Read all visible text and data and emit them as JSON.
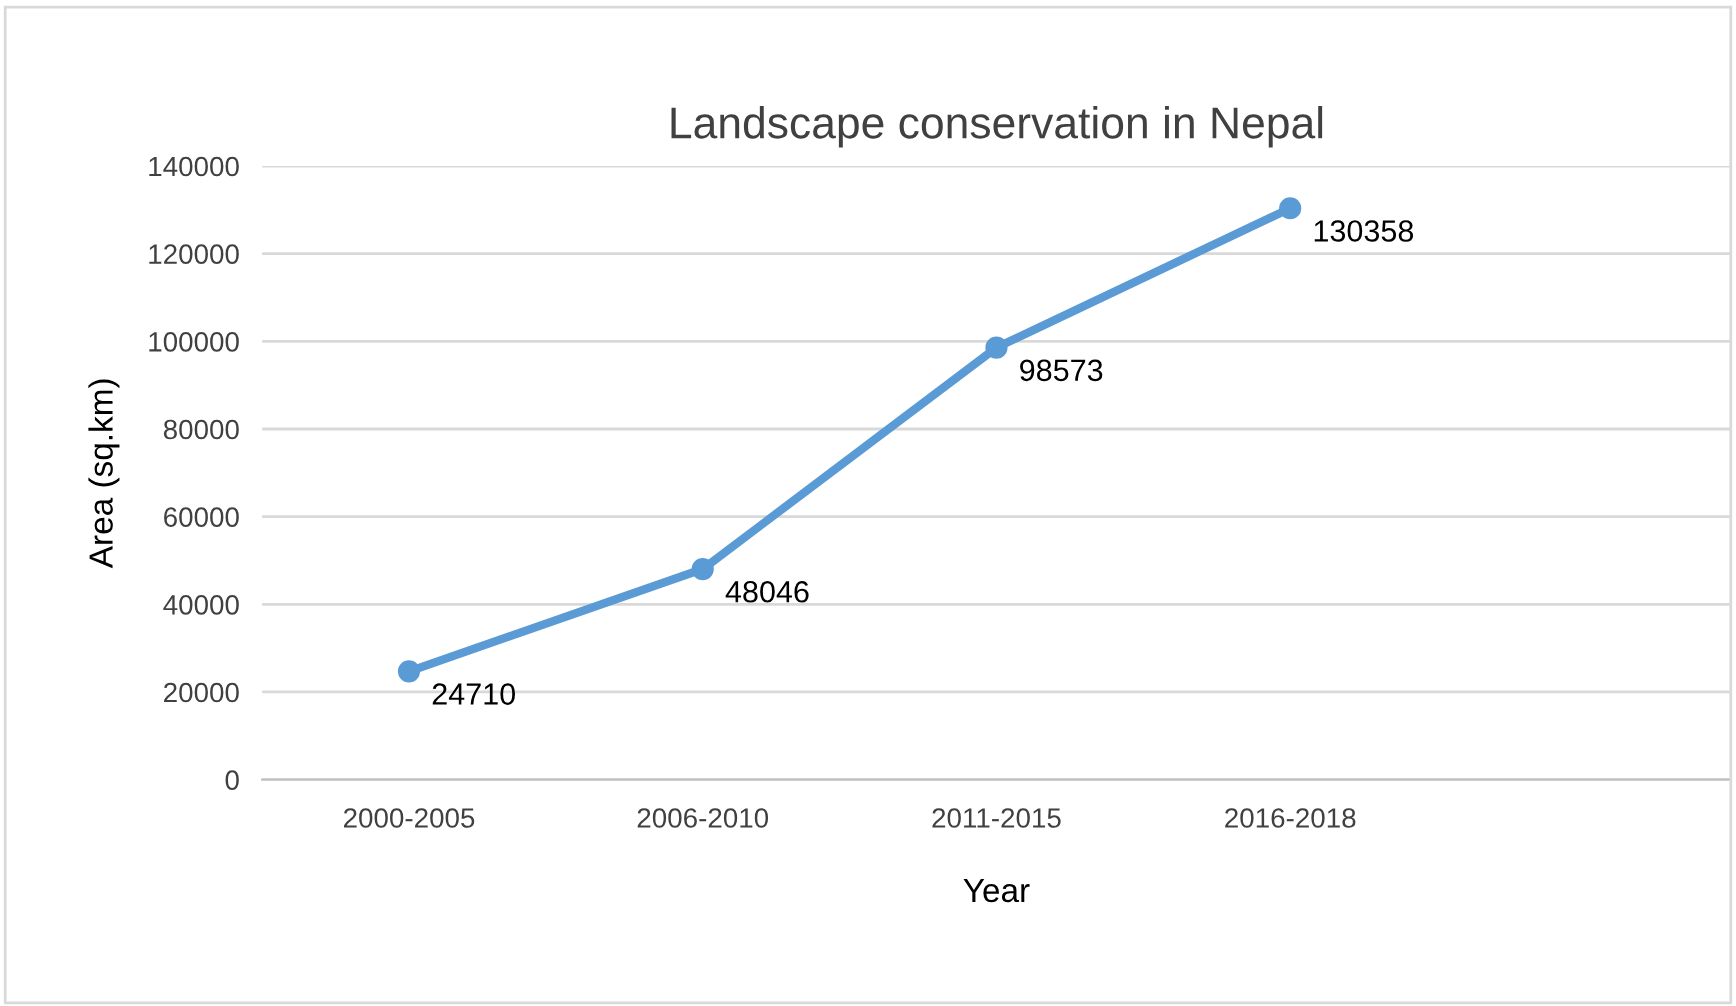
{
  "chart_data": {
    "type": "line",
    "title": "Landscape conservation in Nepal",
    "xlabel": "Year",
    "ylabel": "Area (sq.km)",
    "categories": [
      "2000-2005",
      "2006-2010",
      "2011-2015",
      "2016-2018",
      null
    ],
    "series": [
      {
        "color": "#5b9bd5",
        "values": [
          24710,
          48046,
          98573,
          130358,
          null
        ]
      }
    ],
    "ylim": [
      0,
      140000
    ],
    "yticks": [
      0,
      20000,
      40000,
      60000,
      80000,
      100000,
      120000,
      140000
    ],
    "grid": "y",
    "marker": "circle",
    "line_style": "solid",
    "data_labels": true,
    "legend": false
  }
}
